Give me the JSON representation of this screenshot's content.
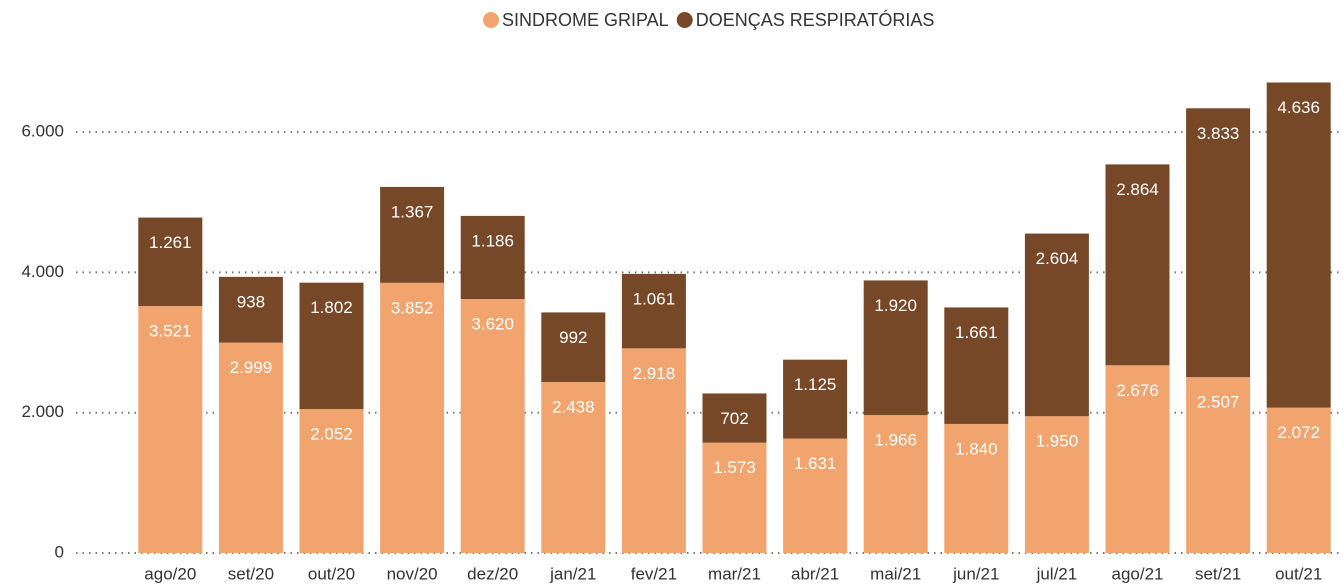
{
  "chart_data": {
    "type": "stacked_bar",
    "categories": [
      "ago/20",
      "set/20",
      "out/20",
      "nov/20",
      "dez/20",
      "jan/21",
      "fev/21",
      "mar/21",
      "abr/21",
      "mai/21",
      "jun/21",
      "jul/21",
      "ago/21",
      "set/21",
      "out/21"
    ],
    "series": [
      {
        "name": "SINDROME GRIPAL",
        "color": "#f2a46f",
        "values": [
          3521,
          2999,
          2052,
          3852,
          3620,
          2438,
          2918,
          1573,
          1631,
          1966,
          1840,
          1950,
          2676,
          2507,
          2072
        ],
        "value_labels": [
          "3.521",
          "2.999",
          "2.052",
          "3.852",
          "3.620",
          "2.438",
          "2.918",
          "1.573",
          "1.631",
          "1.966",
          "1.840",
          "1.950",
          "2.676",
          "2.507",
          "2.072"
        ]
      },
      {
        "name": "DOENÇAS RESPIRATÓRIAS",
        "color": "#774827",
        "values": [
          1261,
          938,
          1802,
          1367,
          1186,
          992,
          1061,
          702,
          1125,
          1920,
          1661,
          2604,
          2864,
          3833,
          4636
        ],
        "value_labels": [
          "1.261",
          "938",
          "1.802",
          "1.367",
          "1.186",
          "992",
          "1.061",
          "702",
          "1.125",
          "1.920",
          "1.661",
          "2.604",
          "2.864",
          "3.833",
          "4.636"
        ]
      }
    ],
    "ylim": [
      0,
      7000
    ],
    "yticks": [
      0,
      {
        "value": 2000,
        "label": "2.000"
      },
      {
        "value": 4000,
        "label": "4.000"
      },
      {
        "value": 6000,
        "label": "6.000"
      }
    ],
    "grid": true,
    "legend": "top"
  }
}
